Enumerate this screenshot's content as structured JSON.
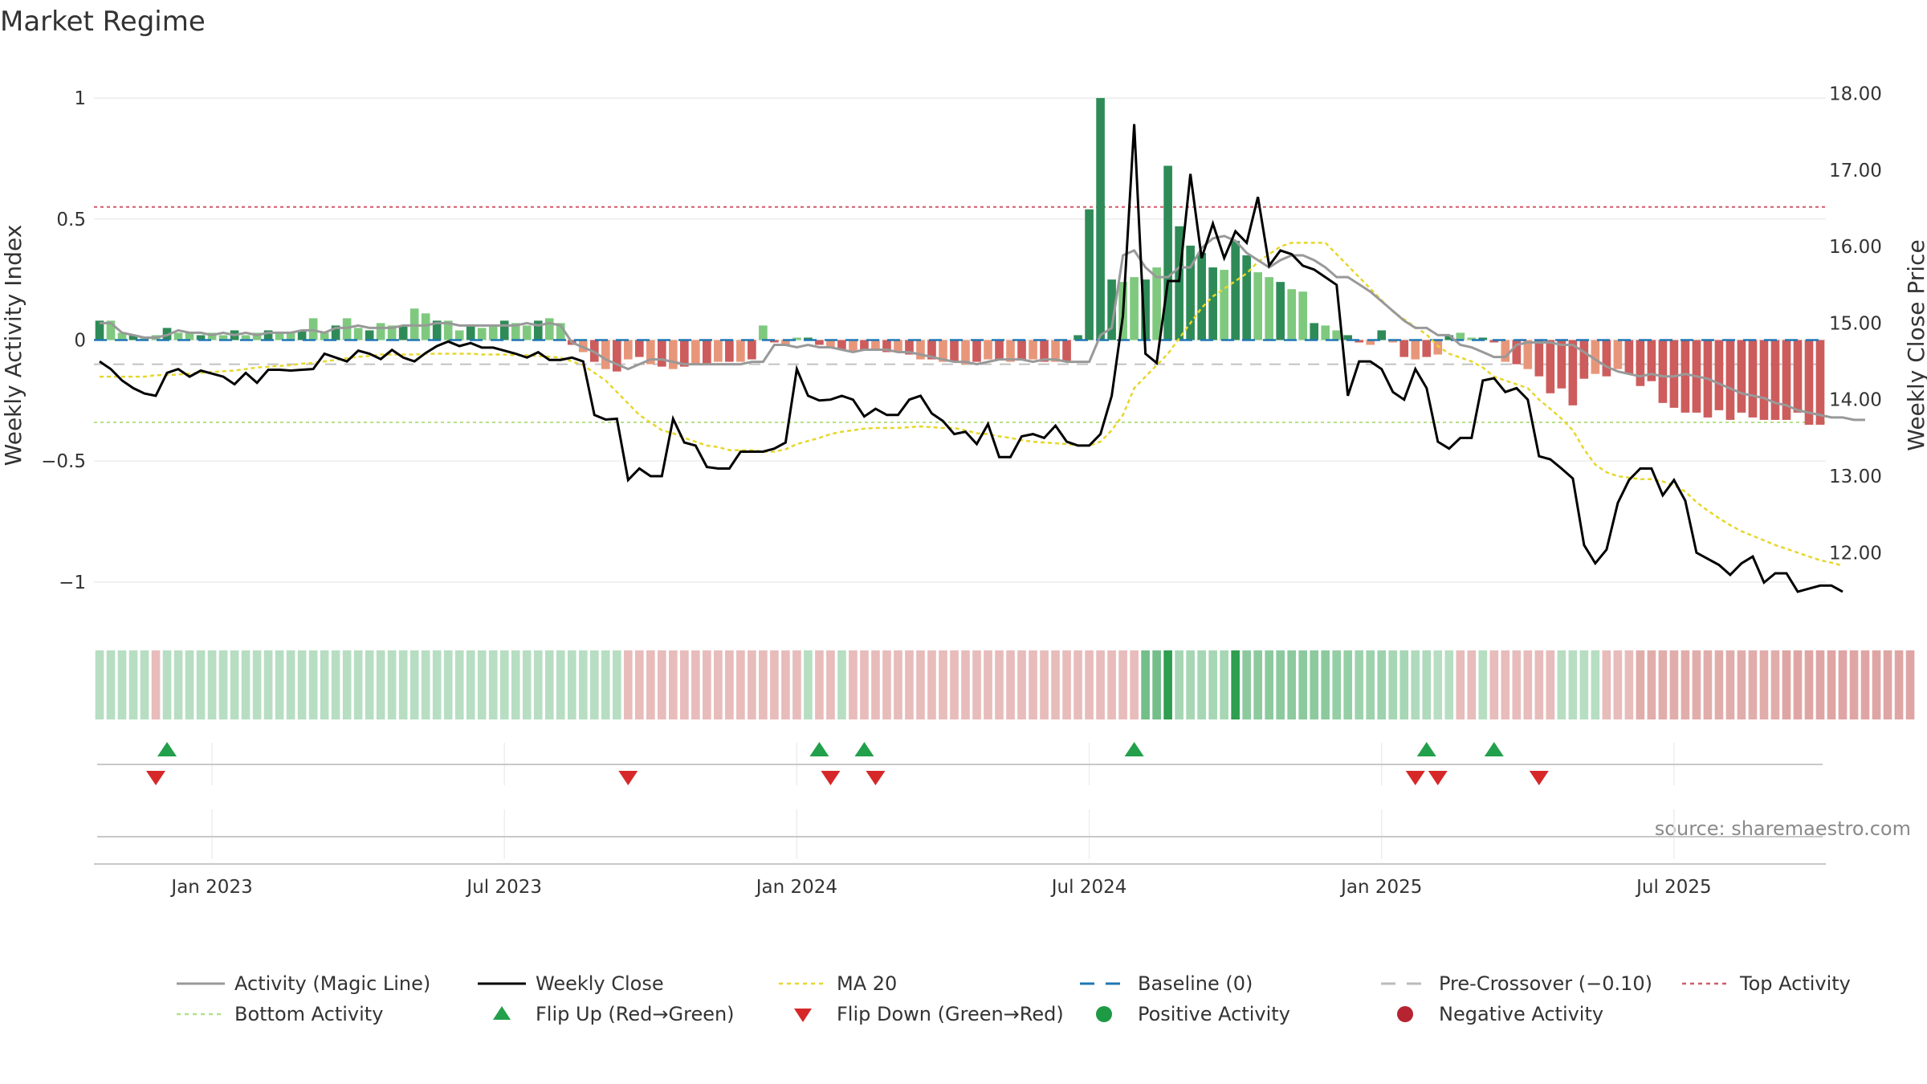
{
  "chart_data": {
    "type": "bar",
    "title": "Market Regime",
    "ylabel_left": "Weekly Activity Index",
    "ylabel_right": "Weekly Close Price",
    "source": "source: sharemaestro.com",
    "ylim_left": [
      -1.1,
      1.05
    ],
    "ylim_right": [
      11.3,
      18.1
    ],
    "yticks_left": [
      {
        "value": 1,
        "label": "1"
      },
      {
        "value": 0.5,
        "label": "0.5"
      },
      {
        "value": 0,
        "label": "0"
      },
      {
        "value": -0.5,
        "label": "−0.5"
      },
      {
        "value": -1,
        "label": "−1"
      }
    ],
    "yticks_right": [
      {
        "value": 18,
        "label": "18.00"
      },
      {
        "value": 17,
        "label": "17.00"
      },
      {
        "value": 16,
        "label": "16.00"
      },
      {
        "value": 15,
        "label": "15.00"
      },
      {
        "value": 14,
        "label": "14.00"
      },
      {
        "value": 13,
        "label": "13.00"
      },
      {
        "value": 12,
        "label": "12.00"
      }
    ],
    "xticks": [
      {
        "week": 10,
        "label": "Jan 2023"
      },
      {
        "week": 36,
        "label": "Jul 2023"
      },
      {
        "week": 62,
        "label": "Jan 2024"
      },
      {
        "week": 88,
        "label": "Jul 2024"
      },
      {
        "week": 114,
        "label": "Jan 2025"
      },
      {
        "week": 140,
        "label": "Jul 2025"
      }
    ],
    "reference_lines": {
      "top_activity": 0.55,
      "bottom_activity": -0.34,
      "pre_crossover": -0.1,
      "baseline": 0
    },
    "activity": [
      0.07,
      0.07,
      0.03,
      0.02,
      0.01,
      0.01,
      0.02,
      0.04,
      0.03,
      0.03,
      0.02,
      0.03,
      0.02,
      0.03,
      0.02,
      0.03,
      0.03,
      0.03,
      0.04,
      0.04,
      0.03,
      0.05,
      0.05,
      0.06,
      0.05,
      0.05,
      0.05,
      0.06,
      0.06,
      0.06,
      0.07,
      0.07,
      0.06,
      0.06,
      0.06,
      0.06,
      0.06,
      0.06,
      0.07,
      0.06,
      0.07,
      0.06,
      -0.01,
      -0.03,
      -0.05,
      -0.08,
      -0.1,
      -0.12,
      -0.1,
      -0.08,
      -0.08,
      -0.09,
      -0.1,
      -0.1,
      -0.1,
      -0.1,
      -0.1,
      -0.1,
      -0.09,
      -0.09,
      -0.02,
      -0.02,
      -0.03,
      -0.02,
      -0.03,
      -0.03,
      -0.04,
      -0.05,
      -0.04,
      -0.04,
      -0.04,
      -0.05,
      -0.05,
      -0.06,
      -0.07,
      -0.08,
      -0.09,
      -0.09,
      -0.1,
      -0.09,
      -0.08,
      -0.08,
      -0.08,
      -0.09,
      -0.08,
      -0.08,
      -0.09,
      -0.09,
      -0.09,
      0.02,
      0.05,
      0.35,
      0.37,
      0.3,
      0.26,
      0.26,
      0.3,
      0.3,
      0.38,
      0.42,
      0.43,
      0.41,
      0.36,
      0.33,
      0.3,
      0.33,
      0.35,
      0.35,
      0.33,
      0.3,
      0.26,
      0.26,
      0.23,
      0.2,
      0.16,
      0.12,
      0.08,
      0.05,
      0.05,
      0.02,
      0.02,
      -0.02,
      -0.03,
      -0.05,
      -0.07,
      -0.07,
      -0.02,
      -0.01,
      -0.01,
      -0.01,
      -0.02,
      -0.02,
      -0.05,
      -0.08,
      -0.11,
      -0.13,
      -0.14,
      -0.15,
      -0.14,
      -0.15,
      -0.15,
      -0.14,
      -0.15,
      -0.16,
      -0.18,
      -0.2,
      -0.22,
      -0.23,
      -0.24,
      -0.26,
      -0.27,
      -0.29,
      -0.3,
      -0.31,
      -0.32,
      -0.32,
      -0.33,
      -0.33
    ],
    "bars": [
      0.08,
      0.08,
      0.03,
      0.02,
      0.01,
      0.02,
      0.05,
      0.03,
      0.03,
      0.02,
      0.03,
      0.02,
      0.04,
      0.02,
      0.03,
      0.04,
      0.03,
      0.03,
      0.04,
      0.09,
      0.03,
      0.06,
      0.09,
      0.05,
      0.04,
      0.07,
      0.06,
      0.06,
      0.13,
      0.11,
      0.08,
      0.08,
      0.04,
      0.06,
      0.05,
      0.06,
      0.08,
      0.07,
      0.06,
      0.08,
      0.09,
      0.07,
      -0.02,
      -0.05,
      -0.09,
      -0.12,
      -0.13,
      -0.08,
      -0.07,
      -0.1,
      -0.11,
      -0.12,
      -0.11,
      -0.1,
      -0.1,
      -0.09,
      -0.09,
      -0.09,
      -0.08,
      0.06,
      -0.01,
      -0.02,
      0.01,
      0.01,
      -0.02,
      -0.03,
      -0.04,
      -0.05,
      -0.04,
      -0.04,
      -0.05,
      -0.05,
      -0.06,
      -0.08,
      -0.08,
      -0.09,
      -0.09,
      -0.1,
      -0.09,
      -0.08,
      -0.08,
      -0.09,
      -0.08,
      -0.08,
      -0.09,
      -0.09,
      -0.09,
      0.02,
      0.54,
      1.0,
      0.25,
      0.24,
      0.26,
      0.25,
      0.3,
      0.72,
      0.47,
      0.39,
      0.36,
      0.3,
      0.29,
      0.41,
      0.35,
      0.28,
      0.26,
      0.24,
      0.21,
      0.2,
      0.07,
      0.06,
      0.04,
      0.02,
      -0.01,
      -0.02,
      0.04,
      -0.01,
      -0.07,
      -0.08,
      -0.07,
      -0.06,
      0.02,
      0.03,
      0.01,
      0.01,
      -0.01,
      -0.09,
      -0.1,
      -0.12,
      -0.15,
      -0.22,
      -0.2,
      -0.27,
      -0.16,
      -0.14,
      -0.15,
      -0.12,
      -0.14,
      -0.19,
      -0.17,
      -0.26,
      -0.28,
      -0.3,
      -0.3,
      -0.32,
      -0.29,
      -0.33,
      -0.3,
      -0.32,
      -0.33,
      -0.33,
      -0.33,
      -0.3,
      -0.35,
      -0.35
    ],
    "weekly_close": [
      14.5,
      14.4,
      14.25,
      14.15,
      14.08,
      14.05,
      14.35,
      14.4,
      14.3,
      14.38,
      14.34,
      14.3,
      14.2,
      14.35,
      14.22,
      14.39,
      14.39,
      14.38,
      14.39,
      14.4,
      14.6,
      14.55,
      14.5,
      14.64,
      14.6,
      14.53,
      14.65,
      14.55,
      14.5,
      14.61,
      14.7,
      14.76,
      14.7,
      14.74,
      14.68,
      14.68,
      14.64,
      14.6,
      14.55,
      14.62,
      14.52,
      14.52,
      14.55,
      14.5,
      13.8,
      13.74,
      13.75,
      12.95,
      13.1,
      13.0,
      13.0,
      13.75,
      13.44,
      13.4,
      13.12,
      13.1,
      13.1,
      13.32,
      13.32,
      13.32,
      13.36,
      13.44,
      14.4,
      14.05,
      13.99,
      14.0,
      14.05,
      14.0,
      13.78,
      13.88,
      13.8,
      13.8,
      14.0,
      14.05,
      13.82,
      13.72,
      13.55,
      13.58,
      13.42,
      13.68,
      13.25,
      13.25,
      13.52,
      13.55,
      13.5,
      13.66,
      13.45,
      13.4,
      13.4,
      13.55,
      14.05,
      15.1,
      17.6,
      14.6,
      14.48,
      15.55,
      15.55,
      16.95,
      15.85,
      16.3,
      15.85,
      16.2,
      16.05,
      16.65,
      15.75,
      15.95,
      15.9,
      15.75,
      15.7,
      15.6,
      15.5,
      14.05,
      14.5,
      14.5,
      14.4,
      14.1,
      14.0,
      14.4,
      14.15,
      13.45,
      13.36,
      13.5,
      13.5,
      14.25,
      14.28,
      14.1,
      14.15,
      14.0,
      13.26,
      13.22,
      13.1,
      12.97,
      12.1,
      11.86,
      12.04,
      12.65,
      12.95,
      13.1,
      13.1,
      12.75,
      12.95,
      12.68,
      12.0,
      11.92,
      11.84,
      11.71,
      11.86,
      11.95,
      11.61,
      11.73,
      11.73,
      11.49,
      11.53,
      11.57,
      11.57,
      11.49
    ],
    "ma20": [
      14.3,
      14.3,
      14.3,
      14.3,
      14.3,
      14.32,
      14.32,
      14.33,
      14.34,
      14.35,
      14.36,
      14.37,
      14.38,
      14.4,
      14.42,
      14.43,
      14.44,
      14.45,
      14.47,
      14.48,
      14.5,
      14.52,
      14.54,
      14.56,
      14.57,
      14.59,
      14.59,
      14.59,
      14.59,
      14.6,
      14.6,
      14.6,
      14.6,
      14.6,
      14.59,
      14.59,
      14.59,
      14.58,
      14.58,
      14.57,
      14.56,
      14.55,
      14.5,
      14.45,
      14.35,
      14.25,
      14.1,
      13.95,
      13.8,
      13.7,
      13.6,
      13.56,
      13.5,
      13.45,
      13.4,
      13.38,
      13.34,
      13.34,
      13.34,
      13.32,
      13.32,
      13.35,
      13.42,
      13.46,
      13.5,
      13.55,
      13.58,
      13.6,
      13.62,
      13.63,
      13.63,
      13.63,
      13.64,
      13.65,
      13.64,
      13.63,
      13.63,
      13.6,
      13.56,
      13.55,
      13.52,
      13.5,
      13.47,
      13.45,
      13.44,
      13.43,
      13.42,
      13.4,
      13.4,
      13.45,
      13.6,
      13.8,
      14.15,
      14.3,
      14.45,
      14.6,
      14.8,
      15.0,
      15.2,
      15.35,
      15.45,
      15.55,
      15.65,
      15.8,
      15.9,
      16.0,
      16.05,
      16.05,
      16.05,
      16.05,
      15.9,
      15.75,
      15.6,
      15.45,
      15.3,
      15.15,
      15.05,
      14.95,
      14.85,
      14.7,
      14.6,
      14.55,
      14.5,
      14.42,
      14.3,
      14.25,
      14.2,
      14.15,
      14.0,
      13.88,
      13.75,
      13.6,
      13.35,
      13.15,
      13.05,
      13.0,
      12.98,
      12.96,
      12.96,
      12.93,
      12.88,
      12.8,
      12.66,
      12.55,
      12.45,
      12.36,
      12.28,
      12.22,
      12.16,
      12.1,
      12.05,
      12.0,
      11.95,
      11.9,
      11.87,
      11.83
    ],
    "regime_strip": [
      0.2,
      0.2,
      0.2,
      0.2,
      0.2,
      -0.2,
      0.2,
      0.2,
      0.2,
      0.2,
      0.2,
      0.2,
      0.2,
      0.2,
      0.2,
      0.2,
      0.2,
      0.2,
      0.2,
      0.2,
      0.2,
      0.2,
      0.2,
      0.2,
      0.2,
      0.2,
      0.2,
      0.2,
      0.2,
      0.2,
      0.2,
      0.2,
      0.2,
      0.2,
      0.2,
      0.2,
      0.2,
      0.2,
      0.2,
      0.2,
      0.2,
      0.2,
      0.2,
      0.2,
      0.2,
      0.2,
      0.2,
      -0.2,
      -0.2,
      -0.2,
      -0.2,
      -0.2,
      -0.2,
      -0.2,
      -0.2,
      -0.2,
      -0.2,
      -0.2,
      -0.2,
      -0.2,
      -0.2,
      -0.2,
      -0.2,
      0.2,
      -0.2,
      -0.2,
      0.2,
      -0.2,
      -0.2,
      -0.2,
      -0.2,
      -0.2,
      -0.2,
      -0.2,
      -0.2,
      -0.2,
      -0.2,
      -0.2,
      -0.2,
      -0.2,
      -0.2,
      -0.2,
      -0.2,
      -0.2,
      -0.2,
      -0.2,
      -0.2,
      -0.2,
      -0.2,
      -0.2,
      -0.2,
      -0.2,
      -0.2,
      0.6,
      0.6,
      1.0,
      0.3,
      0.3,
      0.3,
      0.3,
      0.3,
      1.0,
      0.45,
      0.45,
      0.45,
      0.45,
      0.45,
      0.45,
      0.45,
      0.45,
      0.4,
      0.4,
      0.35,
      0.35,
      0.35,
      0.3,
      0.3,
      0.25,
      0.25,
      0.2,
      0.2,
      -0.2,
      -0.2,
      0.2,
      -0.2,
      -0.2,
      -0.2,
      -0.2,
      -0.2,
      -0.2,
      0.2,
      0.2,
      0.2,
      0.2,
      -0.2,
      -0.2,
      -0.2,
      -0.3,
      -0.3,
      -0.3,
      -0.3,
      -0.3,
      -0.3,
      -0.3,
      -0.3,
      -0.3,
      -0.3,
      -0.3,
      -0.3,
      -0.3,
      -0.35,
      -0.35,
      -0.35,
      -0.35,
      -0.35,
      -0.35,
      -0.35,
      -0.35,
      -0.35,
      -0.35,
      -0.35,
      -0.35
    ],
    "flip_up_weeks": [
      6,
      64,
      68,
      92,
      118,
      124
    ],
    "flip_down_weeks": [
      5,
      47,
      65,
      69,
      117,
      119,
      128
    ],
    "legend": [
      {
        "key": "activity",
        "label": "Activity (Magic Line)",
        "color": "#999999",
        "style": "solid"
      },
      {
        "key": "close",
        "label": "Weekly Close",
        "color": "#000000",
        "style": "solid"
      },
      {
        "key": "ma20",
        "label": "MA 20",
        "color": "#e6d72a",
        "style": "dotted"
      },
      {
        "key": "baseline",
        "label": "Baseline (0)",
        "color": "#1f77b4",
        "style": "dashed"
      },
      {
        "key": "precross",
        "label": "Pre-Crossover (−0.10)",
        "color": "#bbbbbb",
        "style": "dashed"
      },
      {
        "key": "top",
        "label": "Top Activity",
        "color": "#d45a6a",
        "style": "dotted"
      },
      {
        "key": "bottom",
        "label": "Bottom Activity",
        "color": "#b5e08a",
        "style": "dotted"
      },
      {
        "key": "flipup",
        "label": "Flip Up (Red→Green)",
        "color": "#22a04b",
        "style": "tri-up"
      },
      {
        "key": "flipdown",
        "label": "Flip Down (Green→Red)",
        "color": "#d62828",
        "style": "tri-down"
      },
      {
        "key": "pos",
        "label": "Positive Activity",
        "color": "#1e9a45",
        "style": "circle"
      },
      {
        "key": "neg",
        "label": "Negative Activity",
        "color": "#b52430",
        "style": "circle"
      }
    ]
  }
}
